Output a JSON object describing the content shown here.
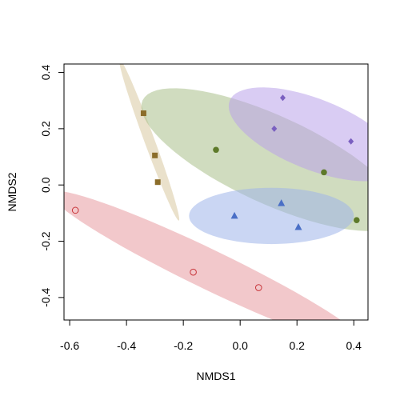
{
  "chart_data": {
    "type": "scatter",
    "title": "",
    "xlabel": "NMDS1",
    "ylabel": "NMDS2",
    "xlim": [
      -0.62,
      0.45
    ],
    "ylim": [
      -0.48,
      0.43
    ],
    "x_ticks": [
      -0.6,
      -0.4,
      -0.2,
      0.0,
      0.2,
      0.4
    ],
    "x_tick_labels": [
      "-0.6",
      "-0.4",
      "-0.2",
      "0.0",
      "0.2",
      "0.4"
    ],
    "y_ticks": [
      -0.4,
      -0.2,
      0.0,
      0.2,
      0.4
    ],
    "y_tick_labels": [
      "-0.4",
      "-0.2",
      "0.0",
      "0.2",
      "0.4"
    ],
    "grid": false,
    "legend": "none",
    "ellipses": [
      {
        "color": "#d9c9a0",
        "center": [
          -0.32,
          0.16
        ],
        "semi_major": 0.305,
        "semi_minor": 0.018,
        "angle_deg": -70
      },
      {
        "color": "#a9c08a",
        "center": [
          0.11,
          0.09
        ],
        "semi_major": 0.5,
        "semi_minor": 0.155,
        "angle_deg": -25
      },
      {
        "color": "#b9a2ea",
        "center": [
          0.26,
          0.18
        ],
        "semi_major": 0.32,
        "semi_minor": 0.125,
        "angle_deg": -22
      },
      {
        "color": "#9fb5ea",
        "center": [
          0.11,
          -0.11
        ],
        "semi_major": 0.29,
        "semi_minor": 0.1,
        "angle_deg": 0
      },
      {
        "color": "#e89aa0",
        "center": [
          -0.11,
          -0.3
        ],
        "semi_major": 0.62,
        "semi_minor": 0.07,
        "angle_deg": -26
      }
    ],
    "series": [
      {
        "marker": "square",
        "color": "#8b6d2a",
        "points": [
          [
            -0.34,
            0.255
          ],
          [
            -0.3,
            0.105
          ],
          [
            -0.29,
            0.01
          ]
        ]
      },
      {
        "marker": "circle",
        "color": "#5e7a2a",
        "points": [
          [
            -0.085,
            0.125
          ],
          [
            0.295,
            0.045
          ],
          [
            0.41,
            -0.125
          ]
        ]
      },
      {
        "marker": "diamond",
        "color": "#7a5fc0",
        "points": [
          [
            0.15,
            0.31
          ],
          [
            0.12,
            0.2
          ],
          [
            0.39,
            0.155
          ]
        ]
      },
      {
        "marker": "triangle",
        "color": "#4a6fc6",
        "points": [
          [
            -0.02,
            -0.11
          ],
          [
            0.145,
            -0.065
          ],
          [
            0.205,
            -0.15
          ]
        ]
      },
      {
        "marker": "open-circle",
        "color": "#c8353a",
        "points": [
          [
            -0.58,
            -0.09
          ],
          [
            -0.165,
            -0.31
          ],
          [
            0.065,
            -0.365
          ]
        ]
      }
    ]
  }
}
